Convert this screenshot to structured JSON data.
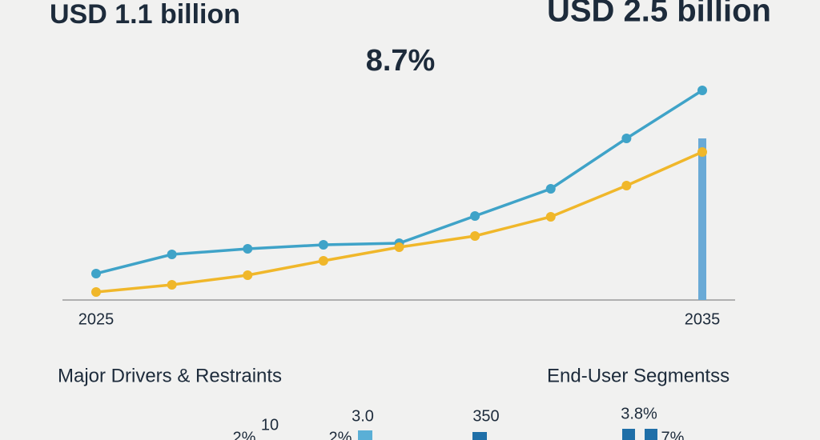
{
  "chart_data": {
    "type": "line",
    "headline_left": "USD 1.1 billion",
    "headline_right": "USD 2.5 billion",
    "headline_center": "8.7%",
    "categories": [
      "2025",
      null,
      null,
      null,
      null,
      null,
      null,
      null,
      "2035"
    ],
    "ylim": [
      0,
      270
    ],
    "series": [
      {
        "color": "#3fa3c8",
        "values": [
          33,
          57,
          64,
          69,
          71,
          105,
          139,
          202,
          262
        ]
      },
      {
        "color": "#f0b72a",
        "values": [
          10,
          19,
          31,
          49,
          66,
          80,
          104,
          143,
          185
        ]
      },
      {
        "type": "bar",
        "color": "#6aaad6",
        "values": [
          null,
          null,
          null,
          null,
          null,
          null,
          null,
          null,
          202
        ]
      }
    ],
    "section_left": "Major Drivers & Restraints",
    "section_right": "End-User Segmentss",
    "fragments": [
      "3.0",
      "350",
      "3.8%",
      "10",
      "2%",
      "2%",
      "7%"
    ]
  }
}
